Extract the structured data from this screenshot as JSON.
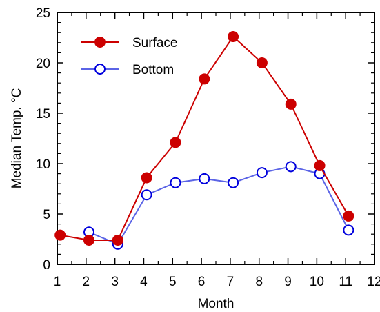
{
  "chart_data": {
    "type": "line",
    "xlabel": "Month",
    "ylabel": "Median Temp. °C",
    "xlim": [
      1,
      12
    ],
    "ylim": [
      0,
      25
    ],
    "xticks": [
      1,
      2,
      3,
      4,
      5,
      6,
      7,
      8,
      9,
      10,
      11,
      12
    ],
    "yticks": [
      0,
      5,
      10,
      15,
      20,
      25
    ],
    "grid": false,
    "legend_position": "top-left",
    "series": [
      {
        "name": "Surface",
        "color": "#cc0000",
        "marker": "filled-circle",
        "x": [
          1.1,
          2.1,
          3.1,
          4.1,
          5.1,
          6.1,
          7.1,
          8.1,
          9.1,
          10.1,
          11.1
        ],
        "y": [
          2.9,
          2.4,
          2.4,
          8.6,
          12.1,
          18.4,
          22.6,
          20.0,
          15.9,
          9.8,
          4.8
        ]
      },
      {
        "name": "Bottom",
        "color": "#0000dd",
        "line_color": "#5b64e6",
        "marker": "open-circle",
        "x": [
          2.1,
          3.1,
          4.1,
          5.1,
          6.1,
          7.1,
          8.1,
          9.1,
          10.1,
          11.1
        ],
        "y": [
          3.2,
          2.0,
          6.9,
          8.1,
          8.5,
          8.1,
          9.1,
          9.7,
          9.0,
          3.4
        ]
      }
    ]
  }
}
